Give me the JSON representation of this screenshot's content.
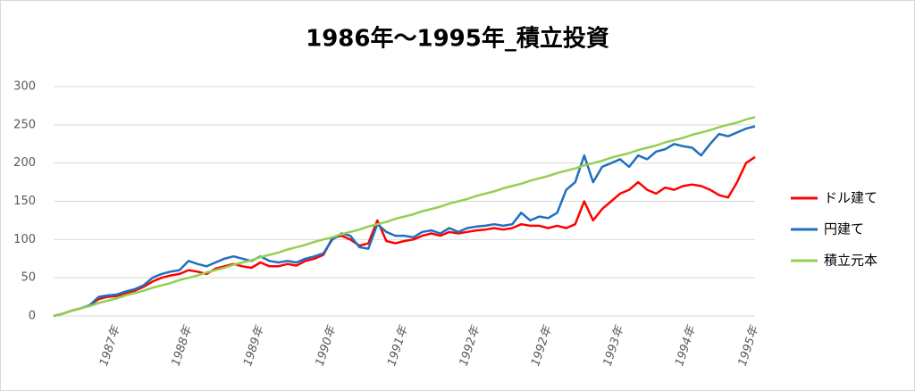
{
  "chart_data": {
    "type": "line",
    "title": "1986年～1995年_積立投資",
    "categories": [
      null,
      null,
      null,
      null,
      null,
      null,
      null,
      "1987年",
      null,
      null,
      null,
      null,
      null,
      null,
      null,
      "1988年",
      null,
      null,
      null,
      null,
      null,
      null,
      null,
      "1989年",
      null,
      null,
      null,
      null,
      null,
      null,
      null,
      "1990年",
      null,
      null,
      null,
      null,
      null,
      null,
      null,
      "1991年",
      null,
      null,
      null,
      null,
      null,
      null,
      null,
      "1992年",
      null,
      null,
      null,
      null,
      null,
      null,
      null,
      "1992年",
      null,
      null,
      null,
      null,
      null,
      null,
      null,
      "1993年",
      null,
      null,
      null,
      null,
      null,
      null,
      null,
      "1994年",
      null,
      null,
      null,
      null,
      null,
      null,
      "1995年"
    ],
    "series": [
      {
        "name": "ドル建て",
        "color": "#ff0000",
        "values": [
          0,
          3,
          7,
          10,
          14,
          22,
          25,
          26,
          30,
          33,
          38,
          45,
          50,
          53,
          55,
          60,
          58,
          55,
          62,
          65,
          68,
          65,
          63,
          70,
          65,
          65,
          68,
          66,
          72,
          75,
          80,
          102,
          105,
          100,
          92,
          95,
          125,
          98,
          95,
          98,
          100,
          105,
          108,
          105,
          110,
          108,
          110,
          112,
          113,
          115,
          113,
          115,
          120,
          118,
          118,
          115,
          118,
          115,
          120,
          150,
          125,
          140,
          150,
          160,
          165,
          175,
          165,
          160,
          168,
          165,
          170,
          172,
          170,
          165,
          158,
          155,
          175,
          200,
          208
        ]
      },
      {
        "name": "円建て",
        "color": "#1f6fc0",
        "values": [
          0,
          3,
          7,
          10,
          14,
          25,
          27,
          28,
          32,
          35,
          40,
          50,
          55,
          58,
          60,
          72,
          68,
          65,
          70,
          75,
          78,
          75,
          72,
          78,
          72,
          70,
          72,
          70,
          75,
          78,
          82,
          100,
          108,
          105,
          90,
          88,
          120,
          110,
          105,
          105,
          103,
          110,
          112,
          108,
          115,
          110,
          115,
          117,
          118,
          120,
          118,
          120,
          135,
          125,
          130,
          128,
          135,
          165,
          175,
          210,
          175,
          195,
          200,
          205,
          195,
          210,
          205,
          215,
          218,
          225,
          222,
          220,
          210,
          225,
          238,
          235,
          240,
          245,
          248
        ]
      },
      {
        "name": "積立元本",
        "color": "#92d050",
        "values": [
          0,
          3,
          7,
          10,
          13,
          17,
          20,
          23,
          27,
          30,
          33,
          37,
          40,
          43,
          47,
          50,
          53,
          57,
          60,
          63,
          67,
          70,
          73,
          77,
          80,
          83,
          87,
          90,
          93,
          97,
          100,
          103,
          107,
          110,
          113,
          117,
          120,
          123,
          127,
          130,
          133,
          137,
          140,
          143,
          147,
          150,
          153,
          157,
          160,
          163,
          167,
          170,
          173,
          177,
          180,
          183,
          187,
          190,
          193,
          197,
          200,
          203,
          207,
          210,
          213,
          217,
          220,
          223,
          227,
          230,
          233,
          237,
          240,
          243,
          247,
          250,
          253,
          257,
          260
        ]
      }
    ],
    "ylim": [
      0,
      300
    ],
    "yticks": [
      0,
      50,
      100,
      150,
      200,
      250,
      300
    ],
    "grid": true,
    "legend": "right"
  }
}
